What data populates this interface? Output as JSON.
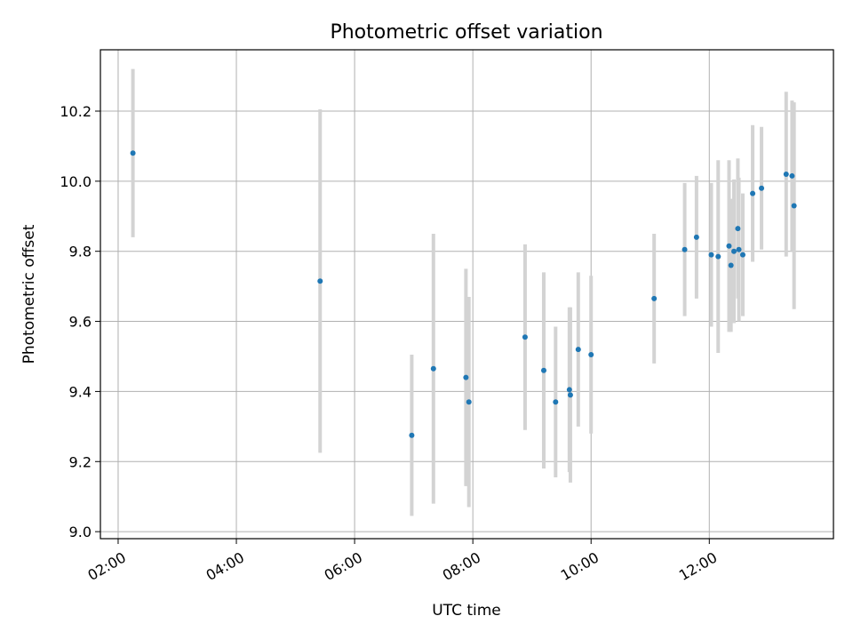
{
  "chart_data": {
    "type": "scatter",
    "title": "Photometric offset variation",
    "xlabel": "UTC time",
    "ylabel": "Photometric offset",
    "x_unit": "hours UTC",
    "xlim": [
      1.7,
      14.1
    ],
    "ylim": [
      8.98,
      10.375
    ],
    "x_ticks": [
      2,
      4,
      6,
      8,
      10,
      12
    ],
    "x_tick_labels": [
      "02:00",
      "04:00",
      "06:00",
      "08:00",
      "10:00",
      "12:00"
    ],
    "y_ticks": [
      9.0,
      9.2,
      9.4,
      9.6,
      9.8,
      10.0,
      10.2
    ],
    "y_tick_labels": [
      "9.0",
      "9.2",
      "9.4",
      "9.6",
      "9.8",
      "10.0",
      "10.2"
    ],
    "grid": true,
    "point_color": "#1f77b4",
    "errorbar_color": "#d3d3d3",
    "points": [
      {
        "x": "02:15",
        "y": 10.08,
        "err": 0.24
      },
      {
        "x": "05:25",
        "y": 9.715,
        "err": 0.49
      },
      {
        "x": "06:58",
        "y": 9.275,
        "err": 0.23
      },
      {
        "x": "07:20",
        "y": 9.465,
        "err": 0.385
      },
      {
        "x": "07:53",
        "y": 9.44,
        "err": 0.31
      },
      {
        "x": "07:56",
        "y": 9.37,
        "err": 0.3
      },
      {
        "x": "08:53",
        "y": 9.555,
        "err": 0.265
      },
      {
        "x": "09:12",
        "y": 9.46,
        "err": 0.28
      },
      {
        "x": "09:24",
        "y": 9.37,
        "err": 0.215
      },
      {
        "x": "09:38",
        "y": 9.405,
        "err": 0.235
      },
      {
        "x": "09:39",
        "y": 9.39,
        "err": 0.25
      },
      {
        "x": "09:47",
        "y": 9.52,
        "err": 0.22
      },
      {
        "x": "10:00",
        "y": 9.505,
        "err": 0.225
      },
      {
        "x": "11:04",
        "y": 9.665,
        "err": 0.185
      },
      {
        "x": "11:35",
        "y": 9.805,
        "err": 0.19
      },
      {
        "x": "11:47",
        "y": 9.84,
        "err": 0.175
      },
      {
        "x": "12:02",
        "y": 9.79,
        "err": 0.205
      },
      {
        "x": "12:09",
        "y": 9.785,
        "err": 0.275
      },
      {
        "x": "12:20",
        "y": 9.815,
        "err": 0.245
      },
      {
        "x": "12:22",
        "y": 9.76,
        "err": 0.19
      },
      {
        "x": "12:25",
        "y": 9.8,
        "err": 0.205
      },
      {
        "x": "12:29",
        "y": 9.865,
        "err": 0.2
      },
      {
        "x": "12:30",
        "y": 9.805,
        "err": 0.205
      },
      {
        "x": "12:34",
        "y": 9.79,
        "err": 0.175
      },
      {
        "x": "12:44",
        "y": 9.965,
        "err": 0.195
      },
      {
        "x": "12:53",
        "y": 9.98,
        "err": 0.175
      },
      {
        "x": "13:18",
        "y": 10.02,
        "err": 0.235
      },
      {
        "x": "13:24",
        "y": 10.015,
        "err": 0.215
      },
      {
        "x": "13:26",
        "y": 9.93,
        "err": 0.295
      }
    ]
  }
}
